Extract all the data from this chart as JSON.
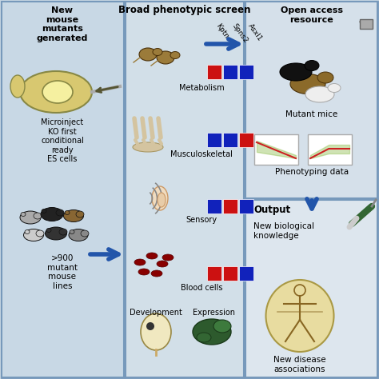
{
  "bg_color": "#c5d5e2",
  "panel_left_color": "#c8d8e5",
  "panel_mid_color": "#d2dfe8",
  "panel_right_top_color": "#d5e0ea",
  "panel_right_bot_color": "#dde6ee",
  "red": "#cc1111",
  "blue": "#1122bb",
  "arrow_color": "#2255aa",
  "outline_color": "#6688aa",
  "left_title": "New\nmouse\nmutants\ngenerated",
  "mid_title": "Broad phenotypic screen",
  "right_top_title": "Open access\nresource",
  "output_label": "Output",
  "phenotype_labels": [
    "Metabolism",
    "Musculoskeletal",
    "Sensory",
    "Blood cells"
  ],
  "gene_labels": [
    "Kptn",
    "Spns2",
    "Asxl1"
  ],
  "color_matrix": [
    [
      "red",
      "blue",
      "blue"
    ],
    [
      "blue",
      "blue",
      "red"
    ],
    [
      "blue",
      "red",
      "blue"
    ],
    [
      "red",
      "red",
      "blue"
    ]
  ],
  "bottom_labels": [
    "Development",
    "Expression"
  ],
  "right_top_labels": [
    "Mutant mice",
    "Phenotyping data"
  ],
  "output_texts": [
    "New biological\nknowledge",
    "New disease\nassociations"
  ],
  "left_mid_text": "Microinject\nKO first\nconditional\nready\nES cells",
  "left_bot_text": ">900\nmutant\nmouse\nlines",
  "figsize": [
    4.74,
    4.74
  ],
  "dpi": 100
}
